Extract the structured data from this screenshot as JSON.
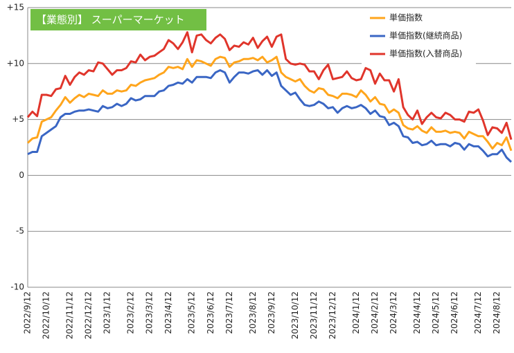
{
  "chart_data": {
    "type": "line",
    "title": "【業態別】 スーパーマーケット",
    "categories": [
      "2022/9/12",
      null,
      null,
      null,
      "2022/10/12",
      null,
      null,
      null,
      null,
      "2022/11/12",
      null,
      null,
      null,
      "2022/12/12",
      null,
      null,
      null,
      "2023/1/12",
      null,
      null,
      null,
      null,
      "2023/2/12",
      null,
      null,
      null,
      "2023/3/12",
      null,
      null,
      null,
      "2023/4/12",
      null,
      null,
      null,
      null,
      "2023/5/12",
      null,
      null,
      null,
      "2023/6/12",
      null,
      null,
      null,
      "2023/7/12",
      null,
      null,
      null,
      null,
      "2023/8/12",
      null,
      null,
      null,
      "2023/9/12",
      null,
      null,
      null,
      null,
      "2023/10/12",
      null,
      null,
      null,
      "2023/11/12",
      null,
      null,
      null,
      "2023/12/12",
      null,
      null,
      null,
      null,
      "2024/1/12",
      null,
      null,
      null,
      "2024/2/12",
      null,
      null,
      null,
      "2024/3/12",
      null,
      null,
      null,
      null,
      "2024/4/12",
      null,
      null,
      null,
      "2024/5/12",
      null,
      null,
      null,
      "2024/6/12",
      null,
      null,
      null,
      null,
      "2024/7/12",
      null,
      null,
      null,
      "2024/8/12",
      null,
      null,
      null
    ],
    "series": [
      {
        "name": "単価指数",
        "color": "#ffa51c",
        "values": [
          2.9,
          3.3,
          3.4,
          4.8,
          5.0,
          5.2,
          5.8,
          6.3,
          7.0,
          6.5,
          6.9,
          7.2,
          7.0,
          7.3,
          7.2,
          7.1,
          7.6,
          7.3,
          7.3,
          7.6,
          7.5,
          7.6,
          8.1,
          8.0,
          8.3,
          8.5,
          8.6,
          8.7,
          9.0,
          9.2,
          9.7,
          9.6,
          9.7,
          9.5,
          10.4,
          9.7,
          10.3,
          10.2,
          10.0,
          9.8,
          10.4,
          10.6,
          10.5,
          9.7,
          10.1,
          10.2,
          10.4,
          10.4,
          10.5,
          10.3,
          10.6,
          10.1,
          10.3,
          10.6,
          9.2,
          8.8,
          8.6,
          8.4,
          8.6,
          8.0,
          7.6,
          7.4,
          7.8,
          7.7,
          7.2,
          7.1,
          6.9,
          7.3,
          7.3,
          7.2,
          7.0,
          7.6,
          7.2,
          6.6,
          7.0,
          6.4,
          6.3,
          5.6,
          5.9,
          5.6,
          4.5,
          4.2,
          4.1,
          4.4,
          4.0,
          3.8,
          4.3,
          3.9,
          3.9,
          4.0,
          3.8,
          3.9,
          3.8,
          3.3,
          3.9,
          3.7,
          3.5,
          3.5,
          3.0,
          2.4,
          2.9,
          2.7,
          3.4,
          2.2
        ]
      },
      {
        "name": "単価指数(継続商品)",
        "color": "#3a66c4",
        "values": [
          1.9,
          2.1,
          2.1,
          3.5,
          3.8,
          4.1,
          4.4,
          5.2,
          5.5,
          5.5,
          5.7,
          5.8,
          5.8,
          5.9,
          5.8,
          5.7,
          6.2,
          6.0,
          6.1,
          6.4,
          6.2,
          6.4,
          6.9,
          6.7,
          6.8,
          7.1,
          7.1,
          7.1,
          7.5,
          7.6,
          8.0,
          8.1,
          8.3,
          8.2,
          8.6,
          8.3,
          8.8,
          8.8,
          8.8,
          8.7,
          9.2,
          9.4,
          9.2,
          8.3,
          8.8,
          9.2,
          9.2,
          9.1,
          9.3,
          9.4,
          9.0,
          9.4,
          8.9,
          9.2,
          8.0,
          7.6,
          7.2,
          7.4,
          6.8,
          6.3,
          6.2,
          6.3,
          6.6,
          6.4,
          6.0,
          6.1,
          5.6,
          6.0,
          6.2,
          6.0,
          6.1,
          6.3,
          6.0,
          5.5,
          5.8,
          5.3,
          5.2,
          4.5,
          4.7,
          4.4,
          3.5,
          3.4,
          2.9,
          3.0,
          2.7,
          2.8,
          3.1,
          2.7,
          2.8,
          2.8,
          2.6,
          2.9,
          2.8,
          2.3,
          2.8,
          2.6,
          2.6,
          2.2,
          1.7,
          1.9,
          1.9,
          2.3,
          1.6,
          1.2
        ]
      },
      {
        "name": "単価指数(入替商品)",
        "color": "#e0352b",
        "values": [
          5.2,
          5.7,
          5.3,
          7.2,
          7.2,
          7.1,
          7.7,
          7.8,
          8.9,
          8.1,
          8.8,
          9.2,
          9.0,
          9.4,
          9.3,
          10.1,
          10.0,
          9.5,
          9.0,
          9.4,
          9.4,
          9.6,
          10.2,
          10.1,
          10.8,
          10.3,
          10.6,
          10.7,
          11.0,
          11.3,
          12.1,
          11.8,
          11.3,
          11.9,
          12.8,
          11.0,
          12.5,
          12.6,
          12.1,
          11.8,
          12.3,
          12.6,
          12.2,
          11.2,
          11.6,
          11.5,
          11.9,
          11.7,
          12.3,
          11.4,
          12.0,
          12.4,
          11.5,
          12.4,
          12.6,
          10.4,
          10.0,
          9.9,
          10.0,
          9.9,
          9.3,
          9.3,
          8.6,
          9.4,
          9.9,
          8.6,
          8.7,
          8.8,
          9.3,
          8.7,
          8.5,
          8.6,
          9.6,
          9.4,
          8.2,
          9.1,
          8.5,
          8.5,
          7.5,
          8.6,
          6.1,
          5.4,
          5.0,
          5.8,
          4.6,
          5.2,
          5.6,
          5.2,
          5.1,
          5.6,
          5.4,
          5.0,
          5.0,
          4.8,
          5.7,
          5.6,
          5.9,
          4.9,
          3.6,
          4.3,
          4.2,
          3.8,
          4.7,
          3.2
        ]
      }
    ],
    "ylim": [
      -10,
      15
    ],
    "yticks": [
      -10,
      -5,
      0,
      {
        "value": 5,
        "label": "+5"
      },
      {
        "value": 10,
        "label": "+10"
      },
      {
        "value": 15,
        "label": "+15"
      }
    ],
    "grid": true,
    "legend": "upper right",
    "title_color": "#72bf44"
  }
}
